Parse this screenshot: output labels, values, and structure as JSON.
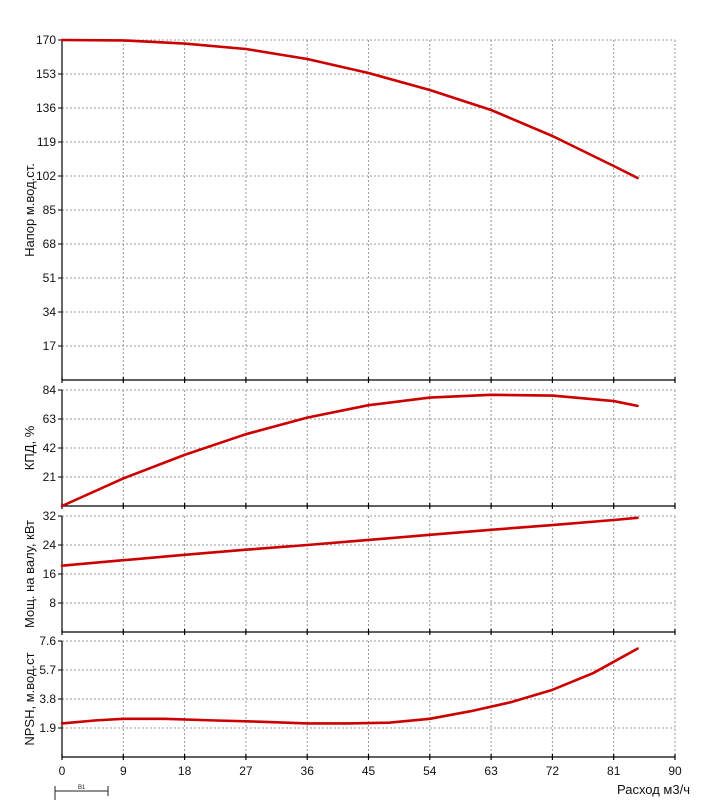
{
  "chart_data": [
    {
      "type": "line",
      "ylabel": "Напор м.вод.ст.",
      "ylim": [
        0,
        170
      ],
      "yticks": [
        170,
        153,
        136,
        119,
        102,
        85,
        68,
        51,
        34,
        17
      ],
      "grid": true,
      "series": [
        {
          "color": "#cc0000",
          "x": [
            0,
            9,
            18,
            27,
            36,
            45,
            54,
            63,
            72,
            81,
            84.5
          ],
          "y": [
            170,
            169.8,
            168.2,
            165.5,
            160.5,
            153.5,
            145,
            135,
            122,
            107,
            101
          ]
        }
      ]
    },
    {
      "type": "line",
      "ylabel": "КПД, %",
      "ylim": [
        0,
        84
      ],
      "yticks": [
        84,
        63,
        42,
        21
      ],
      "grid": true,
      "series": [
        {
          "color": "#cc0000",
          "x": [
            0,
            9,
            18,
            27,
            36,
            45,
            54,
            63,
            72,
            81,
            84.5
          ],
          "y": [
            0,
            20,
            37,
            52,
            64,
            73,
            78.5,
            80.5,
            80,
            76,
            72.5
          ]
        }
      ]
    },
    {
      "type": "line",
      "ylabel": "Мощ. на валу, кВт",
      "ylim": [
        0,
        32
      ],
      "yticks": [
        32,
        24,
        16,
        8
      ],
      "grid": true,
      "series": [
        {
          "color": "#cc0000",
          "x": [
            0,
            9,
            18,
            27,
            36,
            45,
            54,
            63,
            72,
            81,
            84.5
          ],
          "y": [
            18.3,
            19.8,
            21.3,
            22.7,
            24,
            25.4,
            26.8,
            28.2,
            29.5,
            30.9,
            31.5
          ]
        }
      ]
    },
    {
      "type": "line",
      "xlabel": "Расход м3/ч",
      "ylabel": "NPSH, м.вод.ст",
      "ylim": [
        0,
        7.6
      ],
      "yticks": [
        7.6,
        5.7,
        3.8,
        1.9
      ],
      "xlim": [
        0,
        90
      ],
      "xticks": [
        "0",
        "9",
        "18",
        "27",
        "36",
        "45",
        "54",
        "63",
        "72",
        "81",
        "90"
      ],
      "grid": true,
      "series": [
        {
          "color": "#cc0000",
          "x": [
            0,
            5,
            9,
            15,
            22,
            30,
            36,
            42,
            48,
            54,
            60,
            66,
            72,
            78,
            84.5
          ],
          "y": [
            2.2,
            2.4,
            2.5,
            2.5,
            2.4,
            2.3,
            2.2,
            2.2,
            2.25,
            2.5,
            3.0,
            3.6,
            4.4,
            5.5,
            7.1
          ]
        }
      ]
    }
  ],
  "legend": {
    "label": "В1"
  }
}
